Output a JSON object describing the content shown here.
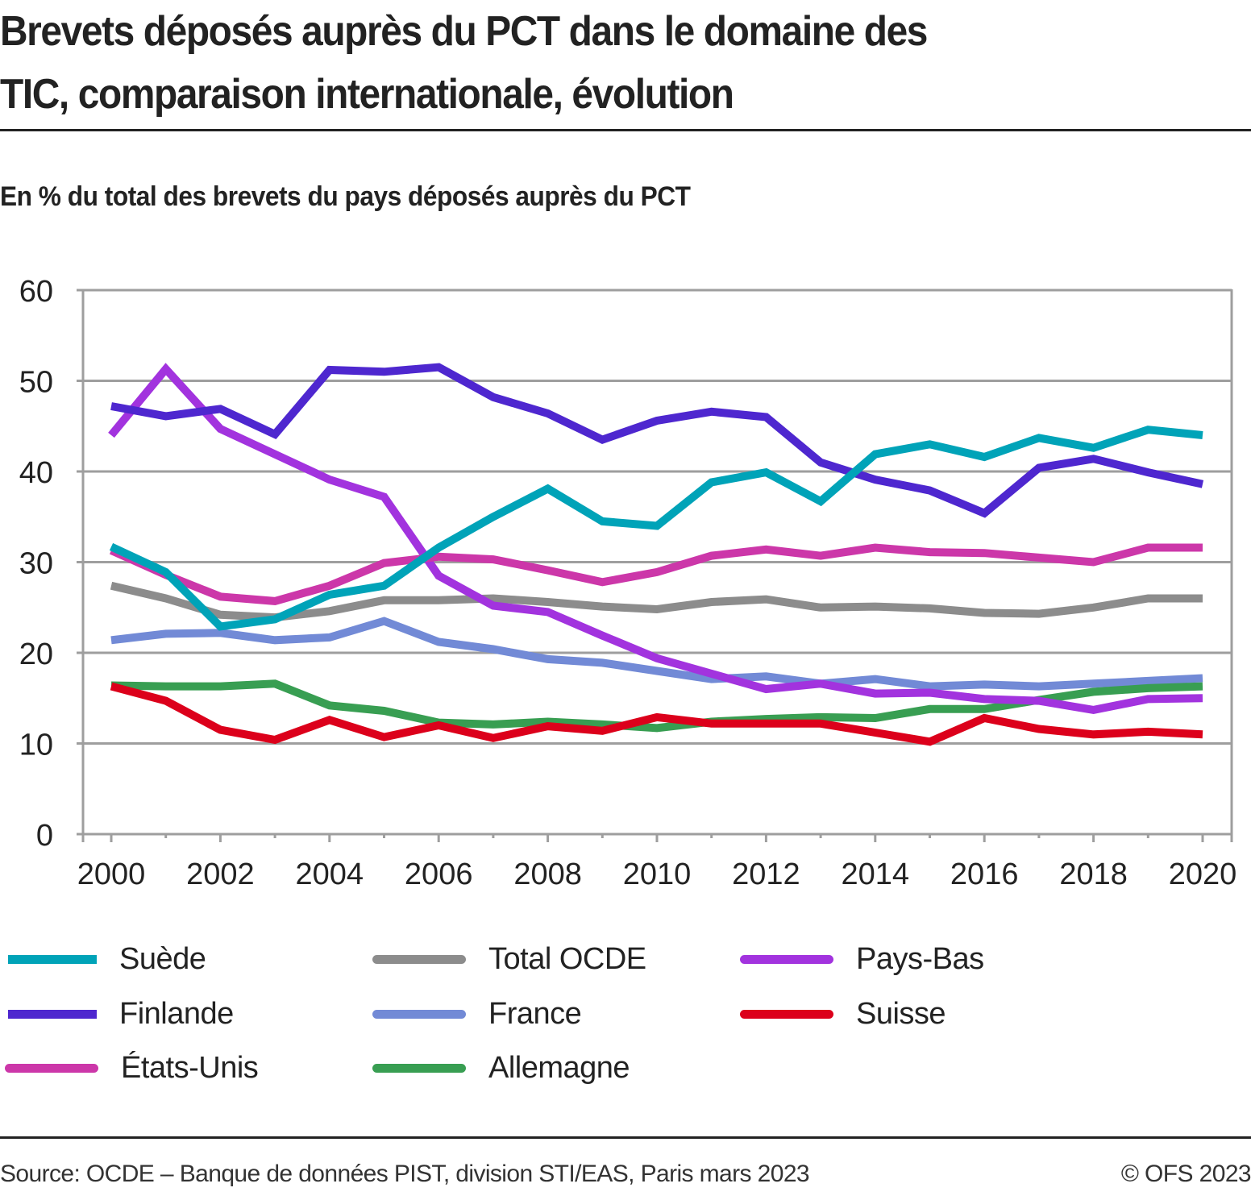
{
  "header": {
    "title_line1": "Brevets déposés auprès du PCT dans le domaine des",
    "title_line2": "TIC, comparaison internationale, évolution",
    "subtitle": "En % du total des brevets du pays déposés auprès du PCT"
  },
  "footer": {
    "source": "Source: OCDE – Banque de données PIST, division STI/EAS, Paris mars 2023",
    "copyright": "© OFS 2023"
  },
  "chart_data": {
    "type": "line",
    "title": "Brevets déposés auprès du PCT dans le domaine des TIC, comparaison internationale, évolution",
    "subtitle": "En % du total des brevets du pays déposés auprès du PCT",
    "xlabel": "",
    "ylabel": "",
    "x": [
      2000,
      2001,
      2002,
      2003,
      2004,
      2005,
      2006,
      2007,
      2008,
      2009,
      2010,
      2011,
      2012,
      2013,
      2014,
      2015,
      2016,
      2017,
      2018,
      2019,
      2020
    ],
    "x_tick_labels": [
      "2000",
      "2002",
      "2004",
      "2006",
      "2008",
      "2010",
      "2012",
      "2014",
      "2016",
      "2018",
      "2020"
    ],
    "y_ticks": [
      0,
      10,
      20,
      30,
      40,
      50,
      60
    ],
    "ylim": [
      0,
      60
    ],
    "xlim": [
      2000,
      2020
    ],
    "grid": "horizontal",
    "legend_position": "bottom",
    "series": [
      {
        "name": "Suède",
        "color": "#00a3b8",
        "values": [
          31.7,
          28.9,
          22.9,
          23.7,
          26.4,
          27.4,
          31.6,
          35.0,
          38.1,
          34.5,
          34.0,
          38.8,
          39.9,
          36.7,
          41.9,
          43.0,
          41.6,
          43.7,
          42.6,
          44.6,
          44.0
        ]
      },
      {
        "name": "Finlande",
        "color": "#4e27cf",
        "values": [
          47.2,
          46.1,
          46.9,
          44.1,
          51.2,
          51.0,
          51.5,
          48.2,
          46.4,
          43.5,
          45.6,
          46.6,
          46.0,
          41.0,
          39.1,
          37.9,
          35.4,
          40.4,
          41.4,
          39.9,
          38.6
        ]
      },
      {
        "name": "États-Unis",
        "color": "#cc37a9",
        "values": [
          31.3,
          28.6,
          26.2,
          25.7,
          27.4,
          29.9,
          30.6,
          30.3,
          29.1,
          27.8,
          28.9,
          30.7,
          31.4,
          30.7,
          31.6,
          31.1,
          31.0,
          30.5,
          30.0,
          31.6,
          31.6
        ]
      },
      {
        "name": "Total OCDE",
        "color": "#8c8c8c",
        "values": [
          27.4,
          26.0,
          24.2,
          23.9,
          24.6,
          25.8,
          25.8,
          26.0,
          25.6,
          25.1,
          24.8,
          25.6,
          25.9,
          25.0,
          25.1,
          24.9,
          24.4,
          24.3,
          25.0,
          26.0,
          26.0
        ]
      },
      {
        "name": "France",
        "color": "#728ad6",
        "values": [
          21.4,
          22.1,
          22.2,
          21.4,
          21.7,
          23.5,
          21.2,
          20.4,
          19.3,
          18.9,
          18.0,
          17.1,
          17.4,
          16.6,
          17.1,
          16.3,
          16.5,
          16.3,
          16.6,
          16.9,
          17.2
        ]
      },
      {
        "name": "Allemagne",
        "color": "#389e52",
        "values": [
          16.4,
          16.3,
          16.3,
          16.6,
          14.2,
          13.6,
          12.3,
          12.1,
          12.4,
          12.1,
          11.7,
          12.4,
          12.7,
          12.9,
          12.8,
          13.8,
          13.8,
          14.8,
          15.7,
          16.1,
          16.3
        ]
      },
      {
        "name": "Pays-Bas",
        "color": "#a233de",
        "values": [
          44.0,
          51.3,
          44.7,
          41.9,
          39.1,
          37.2,
          28.5,
          25.2,
          24.5,
          21.9,
          19.4,
          17.7,
          16.0,
          16.6,
          15.5,
          15.6,
          14.9,
          14.7,
          13.7,
          14.9,
          15.0
        ]
      },
      {
        "name": "Suisse",
        "color": "#dc001b",
        "values": [
          16.3,
          14.7,
          11.5,
          10.4,
          12.6,
          10.7,
          12.0,
          10.6,
          11.9,
          11.4,
          12.9,
          12.2,
          12.2,
          12.2,
          11.2,
          10.2,
          12.8,
          11.6,
          11.0,
          11.3,
          11.0
        ]
      }
    ]
  },
  "legend": {
    "items": [
      {
        "label": "Suède",
        "color": "#00a3b8"
      },
      {
        "label": "Finlande",
        "color": "#4e27cf"
      },
      {
        "label": "États-Unis",
        "color": "#cc37a9"
      },
      {
        "label": "Total OCDE",
        "color": "#8c8c8c"
      },
      {
        "label": "France",
        "color": "#728ad6"
      },
      {
        "label": "Allemagne",
        "color": "#389e52"
      },
      {
        "label": "Pays-Bas",
        "color": "#a233de"
      },
      {
        "label": "Suisse",
        "color": "#dc001b"
      }
    ]
  },
  "colors": {
    "grid": "#9e9e9e",
    "text": "#222222"
  }
}
